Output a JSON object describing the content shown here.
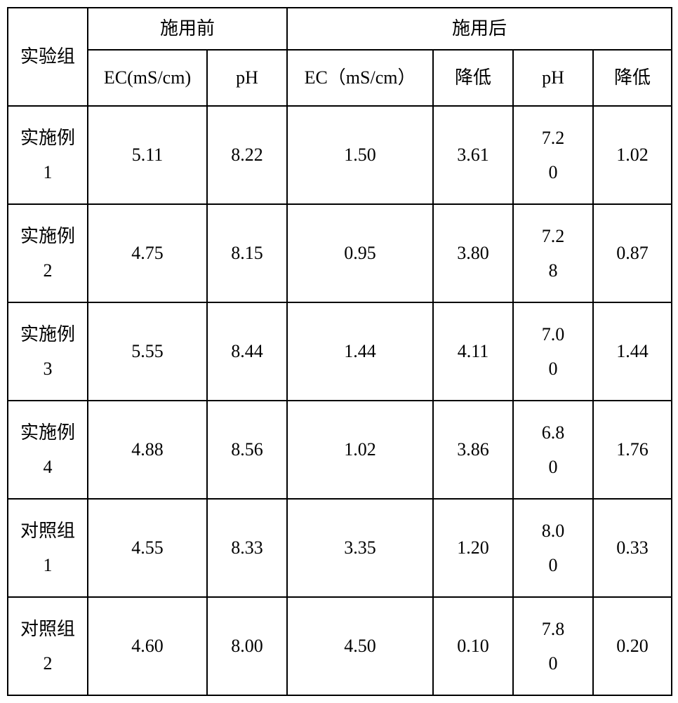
{
  "table": {
    "border_color": "#000000",
    "background_color": "#ffffff",
    "text_color": "#000000",
    "font_size_pt": 20,
    "header": {
      "group": "实验组",
      "before": "施用前",
      "after": "施用后",
      "ec_before": "EC(mS/cm)",
      "ph_before": "pH",
      "ec_after": "EC（mS/cm）",
      "dec1": "降低",
      "ph_after": "pH",
      "dec2": "降低"
    },
    "rows": [
      {
        "group": "实施例1",
        "ec_before": "5.11",
        "ph_before": "8.22",
        "ec_after": "1.50",
        "dec1": "3.61",
        "ph_after": "7.20",
        "dec2": "1.02"
      },
      {
        "group": "实施例2",
        "ec_before": "4.75",
        "ph_before": "8.15",
        "ec_after": "0.95",
        "dec1": "3.80",
        "ph_after": "7.28",
        "dec2": "0.87"
      },
      {
        "group": "实施例3",
        "ec_before": "5.55",
        "ph_before": "8.44",
        "ec_after": "1.44",
        "dec1": "4.11",
        "ph_after": "7.00",
        "dec2": "1.44"
      },
      {
        "group": "实施例4",
        "ec_before": "4.88",
        "ph_before": "8.56",
        "ec_after": "1.02",
        "dec1": "3.86",
        "ph_after": "6.80",
        "dec2": "1.76"
      },
      {
        "group": "对照组1",
        "ec_before": "4.55",
        "ph_before": "8.33",
        "ec_after": "3.35",
        "dec1": "1.20",
        "ph_after": "8.00",
        "dec2": "0.33"
      },
      {
        "group": "对照组2",
        "ec_before": "4.60",
        "ph_before": "8.00",
        "ec_after": "4.50",
        "dec1": "0.10",
        "ph_after": "7.80",
        "dec2": "0.20"
      }
    ]
  }
}
